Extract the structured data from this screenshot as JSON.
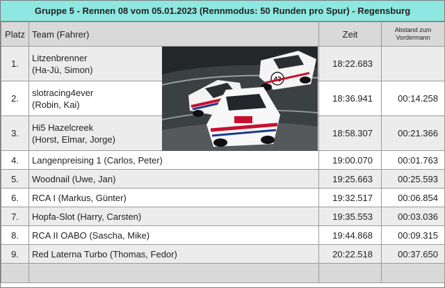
{
  "header": {
    "title": "Gruppe 5 - Rennen 08 vom 05.01.2023 (Rennmodus: 50 Runden pro Spur) - Regensburg"
  },
  "columns": {
    "platz": "Platz",
    "team": "Team (Fahrer)",
    "zeit": "Zeit",
    "abstand_line1": "Abstand zum",
    "abstand_line2": "Vordermann"
  },
  "rows": [
    {
      "platz": "1.",
      "team_line1": "Litzenbrenner",
      "team_line2": "(Ha-Jü, Simon)",
      "zeit": "18:22.683",
      "abstand": ""
    },
    {
      "platz": "2.",
      "team_line1": "slotracing4ever",
      "team_line2": "(Robin, Kai)",
      "zeit": "18:36.941",
      "abstand": "00:14.258"
    },
    {
      "platz": "3.",
      "team_line1": "Hi5 Hazelcreek",
      "team_line2": "(Horst, Elmar, Jorge)",
      "zeit": "18:58.307",
      "abstand": "00:21.366"
    },
    {
      "platz": "4.",
      "team": "Langenpreising 1 (Carlos, Peter)",
      "zeit": "19:00.070",
      "abstand": "00:01.763"
    },
    {
      "platz": "5.",
      "team": "Woodnail (Uwe, Jan)",
      "zeit": "19:25.663",
      "abstand": "00:25.593"
    },
    {
      "platz": "6.",
      "team": "RCA I (Markus, Günter)",
      "zeit": "19:32.517",
      "abstand": "00:06.854"
    },
    {
      "platz": "7.",
      "team": "Hopfa-Slot (Harry, Carsten)",
      "zeit": "19:35.553",
      "abstand": "00:03.036"
    },
    {
      "platz": "8.",
      "team": "RCA II OABO (Sascha, Mike)",
      "zeit": "19:44.868",
      "abstand": "00:09.315"
    },
    {
      "platz": "9.",
      "team": "Red Laterna Turbo (Thomas, Fedor)",
      "zeit": "20:22.518",
      "abstand": "00:37.650"
    }
  ],
  "photo": {
    "car_number": "43",
    "icon": "race-cars-photo"
  }
}
